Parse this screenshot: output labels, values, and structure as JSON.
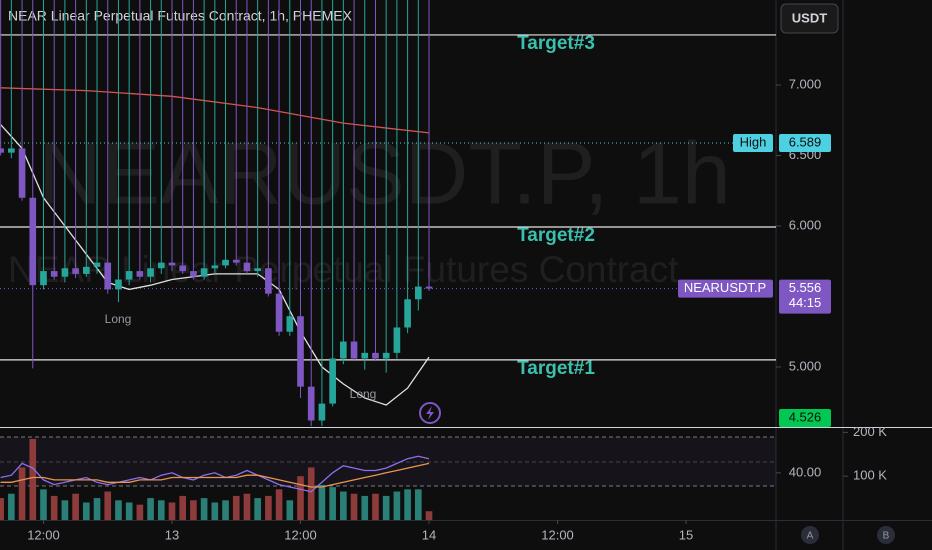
{
  "chart_data": {
    "type": "candlestick",
    "title": "NEAR Linear Perpetual Futures Contract, 1h, PHEMEX",
    "watermark": {
      "symbol": "NEARUSDT.P, 1h",
      "description": "NEAR Linear Perpetual Futures Contract"
    },
    "currency": "USDT",
    "scale_buttons": [
      "A",
      "B"
    ],
    "up_color": "#26a69a",
    "down_color": "#7e57c2",
    "x": [
      -16,
      -15,
      -14,
      -13,
      -12,
      -11,
      -10,
      -9,
      -8,
      -7,
      -6,
      -5,
      -4,
      -3,
      -2,
      -1,
      0,
      1,
      2,
      3,
      4,
      5,
      6,
      7,
      8,
      9,
      10,
      11,
      12,
      13,
      14,
      15,
      16,
      17,
      18,
      19,
      20,
      21,
      22,
      23,
      24
    ],
    "open": [
      6.55,
      6.52,
      6.55,
      6.2,
      5.58,
      5.68,
      5.64,
      5.7,
      5.66,
      5.71,
      5.74,
      5.55,
      5.62,
      5.68,
      5.64,
      5.7,
      5.74,
      5.72,
      5.68,
      5.64,
      5.7,
      5.72,
      5.76,
      5.74,
      5.68,
      5.7,
      5.52,
      5.25,
      5.36,
      4.86,
      4.62,
      4.74,
      5.06,
      5.18,
      5.06,
      5.1,
      5.06,
      5.1,
      5.28,
      5.48,
      5.57
    ],
    "high": {
      "label": "High",
      "value": 6.589,
      "color": "#4dd0e1"
    },
    "low": [
      6.5,
      6.48,
      6.18,
      4.99,
      5.55,
      5.62,
      5.6,
      5.63,
      5.64,
      5.66,
      5.52,
      5.46,
      5.58,
      5.62,
      5.6,
      5.66,
      5.68,
      5.66,
      5.62,
      5.62,
      5.66,
      5.7,
      5.72,
      5.66,
      5.64,
      5.5,
      5.22,
      5.22,
      4.78,
      4.58,
      4.58,
      4.72,
      5.02,
      5.04,
      4.98,
      5.04,
      4.96,
      5.06,
      5.24,
      5.4,
      5.54
    ],
    "close": [
      6.52,
      6.55,
      6.2,
      5.58,
      5.68,
      5.64,
      5.7,
      5.66,
      5.71,
      5.74,
      5.55,
      5.62,
      5.68,
      5.64,
      5.7,
      5.74,
      5.72,
      5.68,
      5.64,
      5.7,
      5.72,
      5.76,
      5.74,
      5.68,
      5.7,
      5.52,
      5.25,
      5.36,
      4.86,
      4.62,
      4.74,
      5.06,
      5.18,
      5.06,
      5.1,
      5.06,
      5.1,
      5.28,
      5.48,
      5.57,
      5.556
    ],
    "lines": [
      {
        "color": "#e0e0e0",
        "x": [
          -16,
          -14,
          -12,
          -10,
          -8,
          -6,
          -4,
          -2,
          0,
          4,
          8,
          10,
          12,
          14,
          16,
          18,
          20,
          22,
          24
        ],
        "values": [
          6.72,
          6.55,
          6.2,
          6.0,
          5.8,
          5.6,
          5.55,
          5.58,
          5.62,
          5.66,
          5.66,
          5.55,
          5.25,
          5.0,
          4.88,
          4.78,
          4.73,
          4.85,
          5.07
        ]
      },
      {
        "color": "#d9534f",
        "x": [
          -16,
          -8,
          0,
          8,
          16,
          24
        ],
        "values": [
          6.98,
          6.96,
          6.92,
          6.84,
          6.73,
          6.66
        ]
      }
    ],
    "xlim": [
      -16.06,
      56.4
    ],
    "xticks": [
      {
        "value": -12,
        "label": "12:00"
      },
      {
        "value": 0,
        "label": "13"
      },
      {
        "value": 12,
        "label": "12:00"
      },
      {
        "value": 24,
        "label": "14"
      },
      {
        "value": 36,
        "label": "12:00"
      },
      {
        "value": 48,
        "label": "15"
      }
    ],
    "ylim": [
      4.574,
      7.603
    ],
    "yticks": [
      {
        "value": 5,
        "label": "5.000"
      },
      {
        "value": 6,
        "label": "6.000"
      },
      {
        "value": 6.5,
        "label": "6.500"
      },
      {
        "value": 7,
        "label": "7.000"
      }
    ],
    "targets": [
      {
        "label": "Target#3",
        "value": 7.355
      },
      {
        "label": "Target#2",
        "value": 5.993
      },
      {
        "label": "Target#1",
        "value": 5.05
      }
    ],
    "target_color": "#3dbfae",
    "last": {
      "label": "NEARUSDT.P",
      "value": 5.556,
      "countdown": "44:15",
      "color": "#7e57c2"
    },
    "low_marker": {
      "value": 4.526,
      "color": "#00c853"
    },
    "annotations": [
      "Long",
      "Long"
    ],
    "volume": {
      "values": [
        50000,
        60000,
        120000,
        185000,
        70000,
        55000,
        45000,
        60000,
        40000,
        50000,
        65000,
        45000,
        40000,
        35000,
        50000,
        45000,
        40000,
        55000,
        45000,
        50000,
        40000,
        45000,
        55000,
        60000,
        50000,
        55000,
        70000,
        45000,
        100000,
        120000,
        80000,
        75000,
        65000,
        60000,
        55000,
        60000,
        55000,
        65000,
        70000,
        70000,
        20000
      ],
      "ylim": [
        0,
        210000
      ],
      "yticks": [
        {
          "value": 100000,
          "label": "100 K"
        },
        {
          "value": 200000,
          "label": "200 K"
        }
      ],
      "up_color": "#2a7f77",
      "down_color": "#8e3b3b"
    },
    "oscillator": {
      "ylim": [
        20,
        59
      ],
      "yticks": [
        {
          "value": 40,
          "label": "40.00"
        }
      ],
      "series": [
        {
          "color": "#8c6ff0",
          "values": [
            38,
            39,
            44,
            42,
            37,
            35,
            36,
            37,
            38,
            36,
            35,
            36,
            37,
            38,
            37,
            39,
            40,
            38,
            37,
            39,
            40,
            38,
            39,
            41,
            39,
            37,
            35,
            34,
            33,
            32,
            36,
            40,
            43,
            42,
            41,
            41,
            42,
            44,
            46,
            47,
            46
          ]
        },
        {
          "color": "#e8964a",
          "values": [
            36,
            36,
            37,
            38,
            38,
            37,
            37,
            37,
            37,
            37,
            36,
            36,
            36,
            37,
            37,
            37,
            38,
            38,
            38,
            38,
            38,
            38,
            38,
            39,
            39,
            38,
            37,
            36,
            35,
            34,
            34,
            35,
            36,
            37,
            38,
            39,
            40,
            41,
            42,
            43,
            44
          ]
        }
      ]
    }
  }
}
